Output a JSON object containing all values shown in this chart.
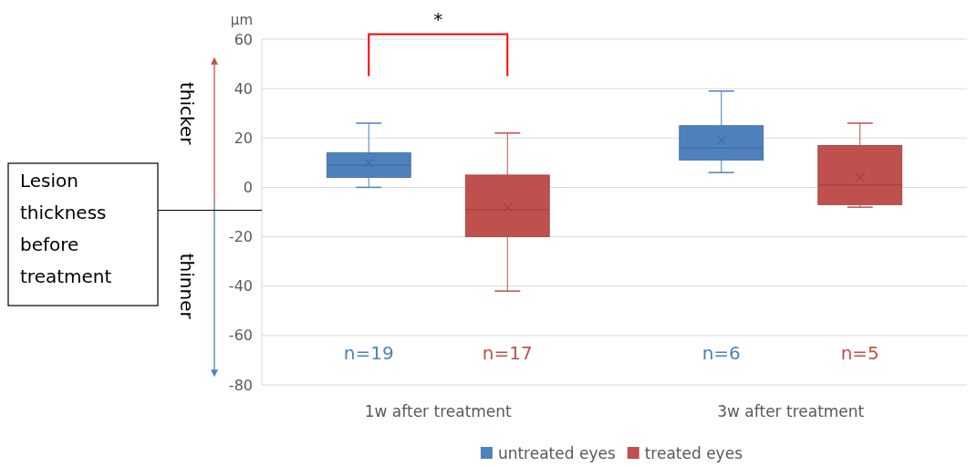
{
  "chart_data": {
    "type": "box",
    "ylabel": "µm",
    "categories": [
      "1w after treatment",
      "3w after treatment"
    ],
    "series": [
      {
        "name": "untreated eyes",
        "color": "#4f81bd",
        "value_labels": [
          "n=19",
          "n=6"
        ],
        "boxes": [
          {
            "low": 0,
            "q1": 4,
            "median": 9,
            "q3": 14,
            "high": 26,
            "mean": 10
          },
          {
            "low": 6,
            "q1": 11,
            "median": 16,
            "q3": 25,
            "high": 39,
            "mean": 19
          }
        ]
      },
      {
        "name": "treated eyes",
        "color": "#c0504d",
        "value_labels": [
          "n=17",
          "n=5"
        ],
        "boxes": [
          {
            "low": -42,
            "q1": -20,
            "median": -9,
            "q3": 5,
            "high": 22,
            "mean": -8
          },
          {
            "low": -8,
            "q1": -7,
            "median": 1,
            "q3": 17,
            "high": 26,
            "mean": 4
          }
        ]
      }
    ],
    "ylim": [
      -80,
      60
    ],
    "yticks": [
      -80,
      -60,
      -40,
      -20,
      0,
      20,
      40,
      60
    ],
    "grid": "y",
    "legend": "bottom",
    "marker": "cross",
    "annotations": [
      "*",
      "thicker",
      "thinner",
      "Lesion thickness before treatment"
    ]
  }
}
